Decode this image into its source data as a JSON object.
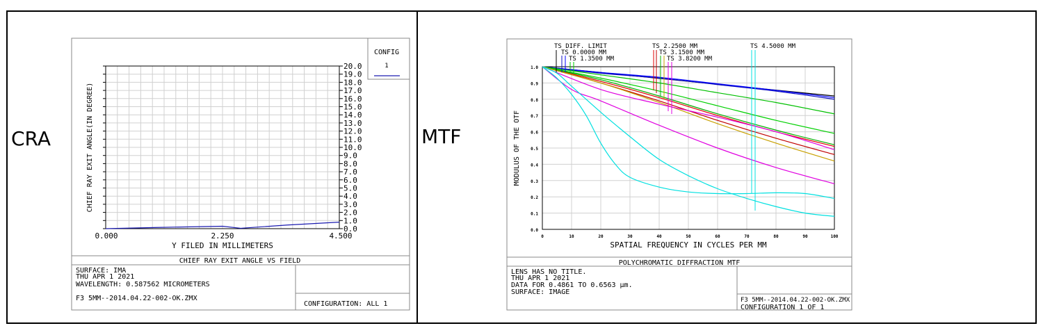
{
  "labels": {
    "left": "CRA",
    "right": "MTF"
  },
  "cra": {
    "config_title": "CONFIG",
    "config_value": "1",
    "legend_color": "#1a1ab0",
    "ylabel": "CHIEF RAY EXIT ANGLE(IN DEGREE)",
    "xlabel": "Y FILED IN MILLIMETERS",
    "x_tick_labels": [
      "0.000",
      "2.250",
      "4.500"
    ],
    "y_tick_labels": [
      "0.0",
      "1.0",
      "2.0",
      "3.0",
      "4.0",
      "5.0",
      "6.0",
      "7.0",
      "8.0",
      "9.0",
      "10.0",
      "11.0",
      "12.0",
      "13.0",
      "14.0",
      "15.0",
      "16.0",
      "17.0",
      "18.0",
      "19.0",
      "20.0"
    ],
    "plot_title": "CHIEF RAY EXIT ANGLE VS FIELD",
    "info_lines": [
      "SURFACE: IMA",
      "THU APR 1 2021",
      "WAVELENGTH: 0.587562 MICROMETERS"
    ],
    "filename": "F3 5MM--2014.04.22-002-OK.ZMX",
    "configuration": "CONFIGURATION: ALL 1"
  },
  "mtf": {
    "legend": {
      "diff": "TS DIFF. LIMIT",
      "f0": "TS 0.0000 MM",
      "f1": "TS 1.3500 MM",
      "f2": "TS 2.2500 MM",
      "f3": "TS 3.1500 MM",
      "f4": "TS 3.8200 MM",
      "f5": "TS 4.5000 MM"
    },
    "ylabel": "MODULUS OF THE OTF",
    "xlabel": "SPATIAL FREQUENCY IN CYCLES PER MM",
    "x_tick_labels": [
      "0",
      "10",
      "20",
      "30",
      "40",
      "50",
      "60",
      "70",
      "80",
      "90",
      "100"
    ],
    "y_tick_labels": [
      "0.0",
      "0.1",
      "0.2",
      "0.3",
      "0.4",
      "0.5",
      "0.6",
      "0.7",
      "0.8",
      "0.9",
      "1.0"
    ],
    "plot_title": "POLYCHROMATIC DIFFRACTION MTF",
    "info_lines": [
      "LENS HAS NO TITLE.",
      "THU APR 1 2021",
      "DATA FOR 0.4861 TO 0.6563 µm.",
      "SURFACE: IMAGE"
    ],
    "filename": "F3 5MM--2014.04.22-002-OK.ZMX",
    "configuration": "CONFIGURATION 1 OF 1"
  },
  "chart_data": [
    {
      "type": "line",
      "xlim": [
        0,
        4.5
      ],
      "ylim": [
        0,
        20
      ],
      "grid": true,
      "series": [
        {
          "name": "1",
          "color": "#1a1ab0",
          "x": [
            0,
            1.0,
            2.25,
            2.6,
            3.5,
            4.5
          ],
          "y": [
            0.0,
            0.15,
            0.3,
            0.05,
            0.45,
            0.8
          ]
        }
      ]
    },
    {
      "type": "line",
      "xlim": [
        0,
        100
      ],
      "ylim": [
        0,
        1.0
      ],
      "grid": true,
      "series": [
        {
          "name": "TS DIFF. LIMIT",
          "color": "#000000",
          "x": [
            0,
            100
          ],
          "y": [
            1.0,
            0.82
          ],
          "curve": "lin"
        },
        {
          "color": "#1010c0",
          "x": [
            0,
            20,
            40,
            60,
            80,
            100
          ],
          "y": [
            1.0,
            0.96,
            0.93,
            0.89,
            0.85,
            0.8
          ]
        },
        {
          "color": "#0000ff",
          "x": [
            0,
            20,
            40,
            60,
            80,
            100
          ],
          "y": [
            1.0,
            0.965,
            0.935,
            0.895,
            0.855,
            0.81
          ]
        },
        {
          "color": "#00c000",
          "x": [
            0,
            20,
            40,
            60,
            80,
            100
          ],
          "y": [
            1.0,
            0.95,
            0.9,
            0.84,
            0.78,
            0.71
          ]
        },
        {
          "color": "#00d000",
          "x": [
            0,
            20,
            40,
            60,
            80,
            100
          ],
          "y": [
            1.0,
            0.93,
            0.85,
            0.76,
            0.67,
            0.59
          ]
        },
        {
          "color": "#e00000",
          "x": [
            0,
            20,
            40,
            60,
            80,
            100
          ],
          "y": [
            1.0,
            0.91,
            0.81,
            0.7,
            0.6,
            0.51
          ]
        },
        {
          "color": "#c00000",
          "x": [
            0,
            20,
            40,
            60,
            80,
            100
          ],
          "y": [
            1.0,
            0.9,
            0.79,
            0.67,
            0.56,
            0.46
          ]
        },
        {
          "color": "#00b000",
          "x": [
            0,
            20,
            40,
            60,
            80,
            100
          ],
          "y": [
            1.0,
            0.92,
            0.82,
            0.71,
            0.61,
            0.52
          ]
        },
        {
          "color": "#c8a000",
          "x": [
            0,
            20,
            40,
            60,
            80,
            100
          ],
          "y": [
            1.0,
            0.9,
            0.78,
            0.65,
            0.53,
            0.42
          ]
        },
        {
          "color": "#e000e0",
          "x": [
            0,
            20,
            40,
            60,
            80,
            100
          ],
          "y": [
            1.0,
            0.86,
            0.77,
            0.69,
            0.6,
            0.49
          ]
        },
        {
          "color": "#e000e0",
          "x": [
            0,
            10,
            20,
            40,
            60,
            80,
            100
          ],
          "y": [
            1.0,
            0.86,
            0.79,
            0.64,
            0.5,
            0.38,
            0.28
          ]
        },
        {
          "color": "#00e0e0",
          "x": [
            0,
            5,
            10,
            15,
            20,
            25,
            30,
            40,
            50,
            60,
            70,
            80,
            90,
            100
          ],
          "y": [
            1.0,
            0.93,
            0.83,
            0.7,
            0.53,
            0.4,
            0.32,
            0.26,
            0.23,
            0.22,
            0.22,
            0.225,
            0.22,
            0.19
          ]
        },
        {
          "color": "#00e0e0",
          "x": [
            0,
            5,
            10,
            20,
            30,
            40,
            50,
            60,
            70,
            80,
            90,
            100
          ],
          "y": [
            1.0,
            0.96,
            0.88,
            0.72,
            0.57,
            0.43,
            0.33,
            0.25,
            0.19,
            0.14,
            0.1,
            0.08
          ]
        }
      ]
    }
  ]
}
